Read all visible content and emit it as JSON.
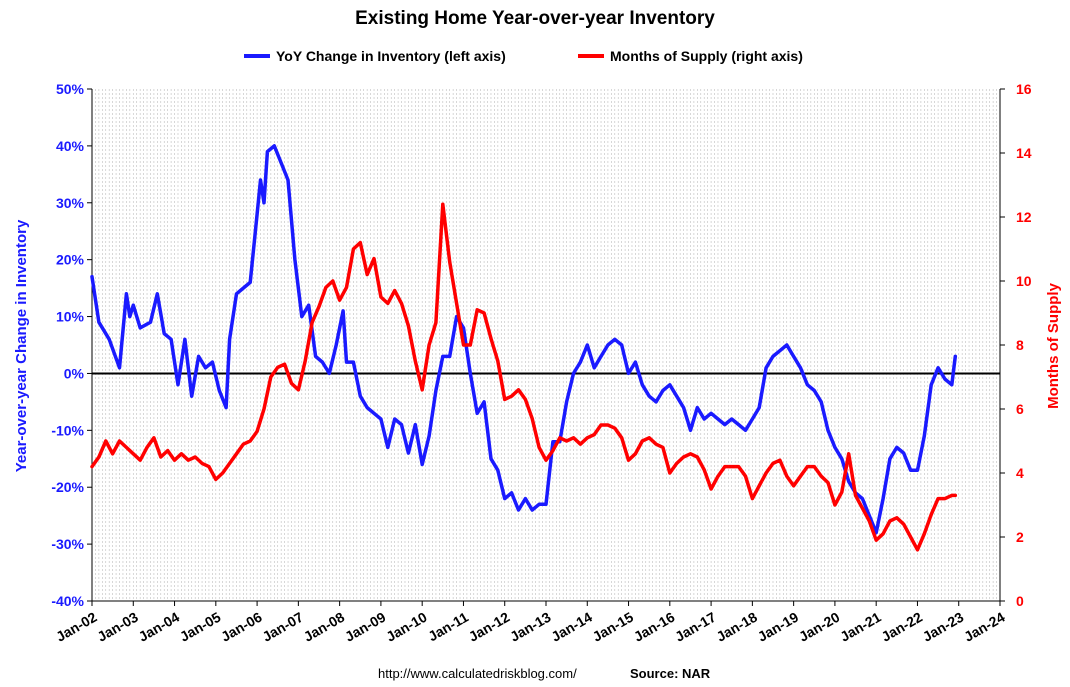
{
  "chart_data": {
    "type": "line",
    "title": "Existing Home Year-over-year Inventory",
    "ylabel_left": "Year-over-year Change in Inventory",
    "ylabel_right": "Months of Supply",
    "ylim_left": [
      -40,
      50
    ],
    "ylim_right": [
      0,
      16
    ],
    "x_range": [
      "2002-01",
      "2024-01"
    ],
    "xticks": [
      "Jan-02",
      "Jan-03",
      "Jan-04",
      "Jan-05",
      "Jan-06",
      "Jan-07",
      "Jan-08",
      "Jan-09",
      "Jan-10",
      "Jan-11",
      "Jan-12",
      "Jan-13",
      "Jan-14",
      "Jan-15",
      "Jan-16",
      "Jan-17",
      "Jan-18",
      "Jan-19",
      "Jan-20",
      "Jan-21",
      "Jan-22",
      "Jan-23",
      "Jan-24"
    ],
    "yticks_left": [
      "50%",
      "40%",
      "30%",
      "20%",
      "10%",
      "0%",
      "-10%",
      "-20%",
      "-30%",
      "-40%"
    ],
    "yticks_right": [
      "16",
      "14",
      "12",
      "10",
      "8",
      "6",
      "4",
      "2",
      "0"
    ],
    "legend_position": "top",
    "grid": "vertical monthly dashed",
    "footer_url": "http://www.calculatedriskblog.com/",
    "footer_source": "Source: NAR",
    "colors": {
      "left_series": "#1a1aff",
      "right_series": "#ff0000"
    },
    "series": [
      {
        "name": "YoY Change in Inventory (left axis)",
        "axis": "left",
        "points": [
          [
            "2002-01",
            17
          ],
          [
            "2002-03",
            9
          ],
          [
            "2002-06",
            6
          ],
          [
            "2002-09",
            1
          ],
          [
            "2002-11",
            14
          ],
          [
            "2002-12",
            10
          ],
          [
            "2003-01",
            12
          ],
          [
            "2003-03",
            8
          ],
          [
            "2003-06",
            9
          ],
          [
            "2003-08",
            14
          ],
          [
            "2003-10",
            7
          ],
          [
            "2003-12",
            6
          ],
          [
            "2004-02",
            -2
          ],
          [
            "2004-04",
            6
          ],
          [
            "2004-06",
            -4
          ],
          [
            "2004-08",
            3
          ],
          [
            "2004-10",
            1
          ],
          [
            "2004-12",
            2
          ],
          [
            "2005-02",
            -3
          ],
          [
            "2005-04",
            -6
          ],
          [
            "2005-05",
            6
          ],
          [
            "2005-07",
            14
          ],
          [
            "2005-09",
            15
          ],
          [
            "2005-11",
            16
          ],
          [
            "2006-01",
            28
          ],
          [
            "2006-02",
            34
          ],
          [
            "2006-03",
            30
          ],
          [
            "2006-04",
            39
          ],
          [
            "2006-06",
            40
          ],
          [
            "2006-08",
            37
          ],
          [
            "2006-10",
            34
          ],
          [
            "2006-12",
            20
          ],
          [
            "2007-02",
            10
          ],
          [
            "2007-04",
            12
          ],
          [
            "2007-06",
            3
          ],
          [
            "2007-08",
            2
          ],
          [
            "2007-10",
            0
          ],
          [
            "2007-12",
            5
          ],
          [
            "2008-02",
            11
          ],
          [
            "2008-03",
            2
          ],
          [
            "2008-05",
            2
          ],
          [
            "2008-07",
            -4
          ],
          [
            "2008-09",
            -6
          ],
          [
            "2008-11",
            -7
          ],
          [
            "2009-01",
            -8
          ],
          [
            "2009-03",
            -13
          ],
          [
            "2009-05",
            -8
          ],
          [
            "2009-07",
            -9
          ],
          [
            "2009-09",
            -14
          ],
          [
            "2009-11",
            -9
          ],
          [
            "2010-01",
            -16
          ],
          [
            "2010-03",
            -11
          ],
          [
            "2010-05",
            -3
          ],
          [
            "2010-07",
            3
          ],
          [
            "2010-09",
            3
          ],
          [
            "2010-11",
            10
          ],
          [
            "2011-01",
            8
          ],
          [
            "2011-03",
            0
          ],
          [
            "2011-05",
            -7
          ],
          [
            "2011-07",
            -5
          ],
          [
            "2011-09",
            -15
          ],
          [
            "2011-11",
            -17
          ],
          [
            "2012-01",
            -22
          ],
          [
            "2012-03",
            -21
          ],
          [
            "2012-05",
            -24
          ],
          [
            "2012-07",
            -22
          ],
          [
            "2012-09",
            -24
          ],
          [
            "2012-11",
            -23
          ],
          [
            "2013-01",
            -23
          ],
          [
            "2013-03",
            -12
          ],
          [
            "2013-05",
            -12
          ],
          [
            "2013-07",
            -5
          ],
          [
            "2013-09",
            0
          ],
          [
            "2013-11",
            2
          ],
          [
            "2014-01",
            5
          ],
          [
            "2014-03",
            1
          ],
          [
            "2014-05",
            3
          ],
          [
            "2014-07",
            5
          ],
          [
            "2014-09",
            6
          ],
          [
            "2014-11",
            5
          ],
          [
            "2015-01",
            0
          ],
          [
            "2015-03",
            2
          ],
          [
            "2015-05",
            -2
          ],
          [
            "2015-07",
            -4
          ],
          [
            "2015-09",
            -5
          ],
          [
            "2015-11",
            -3
          ],
          [
            "2016-01",
            -2
          ],
          [
            "2016-03",
            -4
          ],
          [
            "2016-05",
            -6
          ],
          [
            "2016-07",
            -10
          ],
          [
            "2016-09",
            -6
          ],
          [
            "2016-11",
            -8
          ],
          [
            "2017-01",
            -7
          ],
          [
            "2017-03",
            -8
          ],
          [
            "2017-05",
            -9
          ],
          [
            "2017-07",
            -8
          ],
          [
            "2017-09",
            -9
          ],
          [
            "2017-11",
            -10
          ],
          [
            "2018-01",
            -8
          ],
          [
            "2018-03",
            -6
          ],
          [
            "2018-05",
            1
          ],
          [
            "2018-07",
            3
          ],
          [
            "2018-09",
            4
          ],
          [
            "2018-11",
            5
          ],
          [
            "2019-01",
            3
          ],
          [
            "2019-03",
            1
          ],
          [
            "2019-05",
            -2
          ],
          [
            "2019-07",
            -3
          ],
          [
            "2019-09",
            -5
          ],
          [
            "2019-11",
            -10
          ],
          [
            "2020-01",
            -13
          ],
          [
            "2020-03",
            -15
          ],
          [
            "2020-05",
            -19
          ],
          [
            "2020-07",
            -21
          ],
          [
            "2020-09",
            -22
          ],
          [
            "2020-11",
            -25
          ],
          [
            "2021-01",
            -28
          ],
          [
            "2021-03",
            -22
          ],
          [
            "2021-05",
            -15
          ],
          [
            "2021-07",
            -13
          ],
          [
            "2021-09",
            -14
          ],
          [
            "2021-11",
            -17
          ],
          [
            "2022-01",
            -17
          ],
          [
            "2022-03",
            -11
          ],
          [
            "2022-05",
            -2
          ],
          [
            "2022-07",
            1
          ],
          [
            "2022-09",
            -1
          ],
          [
            "2022-11",
            -2
          ],
          [
            "2022-12",
            3
          ]
        ]
      },
      {
        "name": "Months of Supply (right axis)",
        "axis": "right",
        "points": [
          [
            "2002-01",
            4.2
          ],
          [
            "2002-03",
            4.5
          ],
          [
            "2002-05",
            5.0
          ],
          [
            "2002-07",
            4.6
          ],
          [
            "2002-09",
            5.0
          ],
          [
            "2002-11",
            4.8
          ],
          [
            "2003-01",
            4.6
          ],
          [
            "2003-03",
            4.4
          ],
          [
            "2003-05",
            4.8
          ],
          [
            "2003-07",
            5.1
          ],
          [
            "2003-09",
            4.5
          ],
          [
            "2003-11",
            4.7
          ],
          [
            "2004-01",
            4.4
          ],
          [
            "2004-03",
            4.6
          ],
          [
            "2004-05",
            4.4
          ],
          [
            "2004-07",
            4.5
          ],
          [
            "2004-09",
            4.3
          ],
          [
            "2004-11",
            4.2
          ],
          [
            "2005-01",
            3.8
          ],
          [
            "2005-03",
            4.0
          ],
          [
            "2005-05",
            4.3
          ],
          [
            "2005-07",
            4.6
          ],
          [
            "2005-09",
            4.9
          ],
          [
            "2005-11",
            5.0
          ],
          [
            "2006-01",
            5.3
          ],
          [
            "2006-03",
            6.0
          ],
          [
            "2006-05",
            7.0
          ],
          [
            "2006-07",
            7.3
          ],
          [
            "2006-09",
            7.4
          ],
          [
            "2006-11",
            6.8
          ],
          [
            "2007-01",
            6.6
          ],
          [
            "2007-03",
            7.5
          ],
          [
            "2007-05",
            8.7
          ],
          [
            "2007-07",
            9.2
          ],
          [
            "2007-09",
            9.8
          ],
          [
            "2007-11",
            10.0
          ],
          [
            "2008-01",
            9.4
          ],
          [
            "2008-03",
            9.8
          ],
          [
            "2008-05",
            11.0
          ],
          [
            "2008-07",
            11.2
          ],
          [
            "2008-09",
            10.2
          ],
          [
            "2008-11",
            10.7
          ],
          [
            "2009-01",
            9.5
          ],
          [
            "2009-03",
            9.3
          ],
          [
            "2009-05",
            9.7
          ],
          [
            "2009-07",
            9.3
          ],
          [
            "2009-09",
            8.6
          ],
          [
            "2009-11",
            7.5
          ],
          [
            "2010-01",
            6.6
          ],
          [
            "2010-03",
            8.0
          ],
          [
            "2010-05",
            8.7
          ],
          [
            "2010-07",
            12.4
          ],
          [
            "2010-09",
            10.6
          ],
          [
            "2010-11",
            9.3
          ],
          [
            "2011-01",
            8.0
          ],
          [
            "2011-03",
            8.0
          ],
          [
            "2011-05",
            9.1
          ],
          [
            "2011-07",
            9.0
          ],
          [
            "2011-09",
            8.2
          ],
          [
            "2011-11",
            7.5
          ],
          [
            "2012-01",
            6.3
          ],
          [
            "2012-03",
            6.4
          ],
          [
            "2012-05",
            6.6
          ],
          [
            "2012-07",
            6.3
          ],
          [
            "2012-09",
            5.7
          ],
          [
            "2012-11",
            4.8
          ],
          [
            "2013-01",
            4.4
          ],
          [
            "2013-03",
            4.7
          ],
          [
            "2013-05",
            5.1
          ],
          [
            "2013-07",
            5.0
          ],
          [
            "2013-09",
            5.1
          ],
          [
            "2013-11",
            4.9
          ],
          [
            "2014-01",
            5.1
          ],
          [
            "2014-03",
            5.2
          ],
          [
            "2014-05",
            5.5
          ],
          [
            "2014-07",
            5.5
          ],
          [
            "2014-09",
            5.4
          ],
          [
            "2014-11",
            5.1
          ],
          [
            "2015-01",
            4.4
          ],
          [
            "2015-03",
            4.6
          ],
          [
            "2015-05",
            5.0
          ],
          [
            "2015-07",
            5.1
          ],
          [
            "2015-09",
            4.9
          ],
          [
            "2015-11",
            4.8
          ],
          [
            "2016-01",
            4.0
          ],
          [
            "2016-03",
            4.3
          ],
          [
            "2016-05",
            4.5
          ],
          [
            "2016-07",
            4.6
          ],
          [
            "2016-09",
            4.5
          ],
          [
            "2016-11",
            4.1
          ],
          [
            "2017-01",
            3.5
          ],
          [
            "2017-03",
            3.9
          ],
          [
            "2017-05",
            4.2
          ],
          [
            "2017-07",
            4.2
          ],
          [
            "2017-09",
            4.2
          ],
          [
            "2017-11",
            3.9
          ],
          [
            "2018-01",
            3.2
          ],
          [
            "2018-03",
            3.6
          ],
          [
            "2018-05",
            4.0
          ],
          [
            "2018-07",
            4.3
          ],
          [
            "2018-09",
            4.4
          ],
          [
            "2018-11",
            3.9
          ],
          [
            "2019-01",
            3.6
          ],
          [
            "2019-03",
            3.9
          ],
          [
            "2019-05",
            4.2
          ],
          [
            "2019-07",
            4.2
          ],
          [
            "2019-09",
            3.9
          ],
          [
            "2019-11",
            3.7
          ],
          [
            "2020-01",
            3.0
          ],
          [
            "2020-03",
            3.4
          ],
          [
            "2020-05",
            4.6
          ],
          [
            "2020-07",
            3.3
          ],
          [
            "2020-09",
            2.9
          ],
          [
            "2020-11",
            2.5
          ],
          [
            "2021-01",
            1.9
          ],
          [
            "2021-03",
            2.1
          ],
          [
            "2021-05",
            2.5
          ],
          [
            "2021-07",
            2.6
          ],
          [
            "2021-09",
            2.4
          ],
          [
            "2021-11",
            2.0
          ],
          [
            "2022-01",
            1.6
          ],
          [
            "2022-03",
            2.1
          ],
          [
            "2022-05",
            2.7
          ],
          [
            "2022-07",
            3.2
          ],
          [
            "2022-09",
            3.2
          ],
          [
            "2022-11",
            3.3
          ],
          [
            "2022-12",
            3.3
          ]
        ]
      }
    ]
  }
}
